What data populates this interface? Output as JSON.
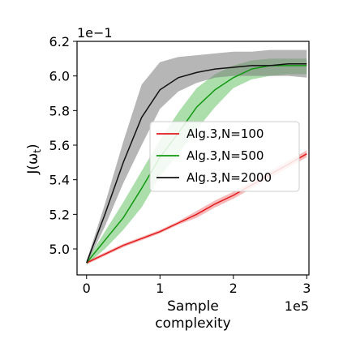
{
  "chart_data": {
    "type": "line",
    "title": "",
    "xlabel_lines": [
      "Sample",
      "complexity"
    ],
    "ylabel": "J(ω_t)",
    "ylabel_main": "J(ω",
    "ylabel_sub": "t",
    "ylabel_close": ")",
    "x_offset_text": "1e5",
    "y_offset_text": "1e−1",
    "x_scale": 100000,
    "y_scale": 0.1,
    "xlim": [
      -0.13,
      3.03
    ],
    "ylim": [
      4.85,
      6.2
    ],
    "x_ticks": [
      0,
      1,
      2,
      3
    ],
    "x_tick_labels": [
      "0",
      "1",
      "2",
      "3"
    ],
    "y_ticks": [
      5.0,
      5.2,
      5.4,
      5.6,
      5.8,
      6.0,
      6.2
    ],
    "y_tick_labels": [
      "5.0",
      "5.2",
      "5.4",
      "5.6",
      "5.8",
      "6.0",
      "6.2"
    ],
    "grid": false,
    "legend_position": "center-right",
    "x": [
      0,
      0.25,
      0.5,
      0.75,
      1.0,
      1.25,
      1.5,
      1.75,
      2.0,
      2.25,
      2.5,
      2.75,
      3.0
    ],
    "series": [
      {
        "name": "Alg.3,N=100",
        "color": "#e31a1c",
        "band_color": "#f08080",
        "y": [
          4.92,
          4.97,
          5.02,
          5.06,
          5.1,
          5.15,
          5.2,
          5.26,
          5.31,
          5.37,
          5.43,
          5.49,
          5.55
        ],
        "upper": [
          4.93,
          4.98,
          5.03,
          5.07,
          5.11,
          5.16,
          5.22,
          5.28,
          5.33,
          5.39,
          5.45,
          5.51,
          5.57
        ],
        "lower": [
          4.91,
          4.96,
          5.01,
          5.05,
          5.09,
          5.14,
          5.18,
          5.24,
          5.29,
          5.35,
          5.41,
          5.47,
          5.53
        ]
      },
      {
        "name": "Alg.3,N=500",
        "color": "#119911",
        "band_color": "#66c266",
        "y": [
          4.92,
          5.05,
          5.18,
          5.35,
          5.53,
          5.67,
          5.82,
          5.92,
          5.99,
          6.04,
          6.06,
          6.06,
          6.06
        ],
        "upper": [
          4.93,
          5.1,
          5.27,
          5.45,
          5.63,
          5.79,
          5.93,
          6.01,
          6.06,
          6.09,
          6.1,
          6.1,
          6.1
        ],
        "lower": [
          4.91,
          5.0,
          5.11,
          5.24,
          5.42,
          5.55,
          5.69,
          5.82,
          5.93,
          5.98,
          6.0,
          6.01,
          6.01
        ]
      },
      {
        "name": "Alg.3,N=2000",
        "color": "#111111",
        "band_color": "#7a7a7a",
        "y": [
          4.92,
          5.2,
          5.5,
          5.76,
          5.92,
          5.99,
          6.02,
          6.04,
          6.05,
          6.06,
          6.06,
          6.07,
          6.07
        ],
        "upper": [
          4.93,
          5.26,
          5.62,
          5.95,
          6.08,
          6.11,
          6.12,
          6.13,
          6.14,
          6.14,
          6.15,
          6.15,
          6.15
        ],
        "lower": [
          4.91,
          5.13,
          5.38,
          5.6,
          5.81,
          5.91,
          5.96,
          5.99,
          6.0,
          6.0,
          6.0,
          6.0,
          5.99
        ]
      }
    ]
  }
}
